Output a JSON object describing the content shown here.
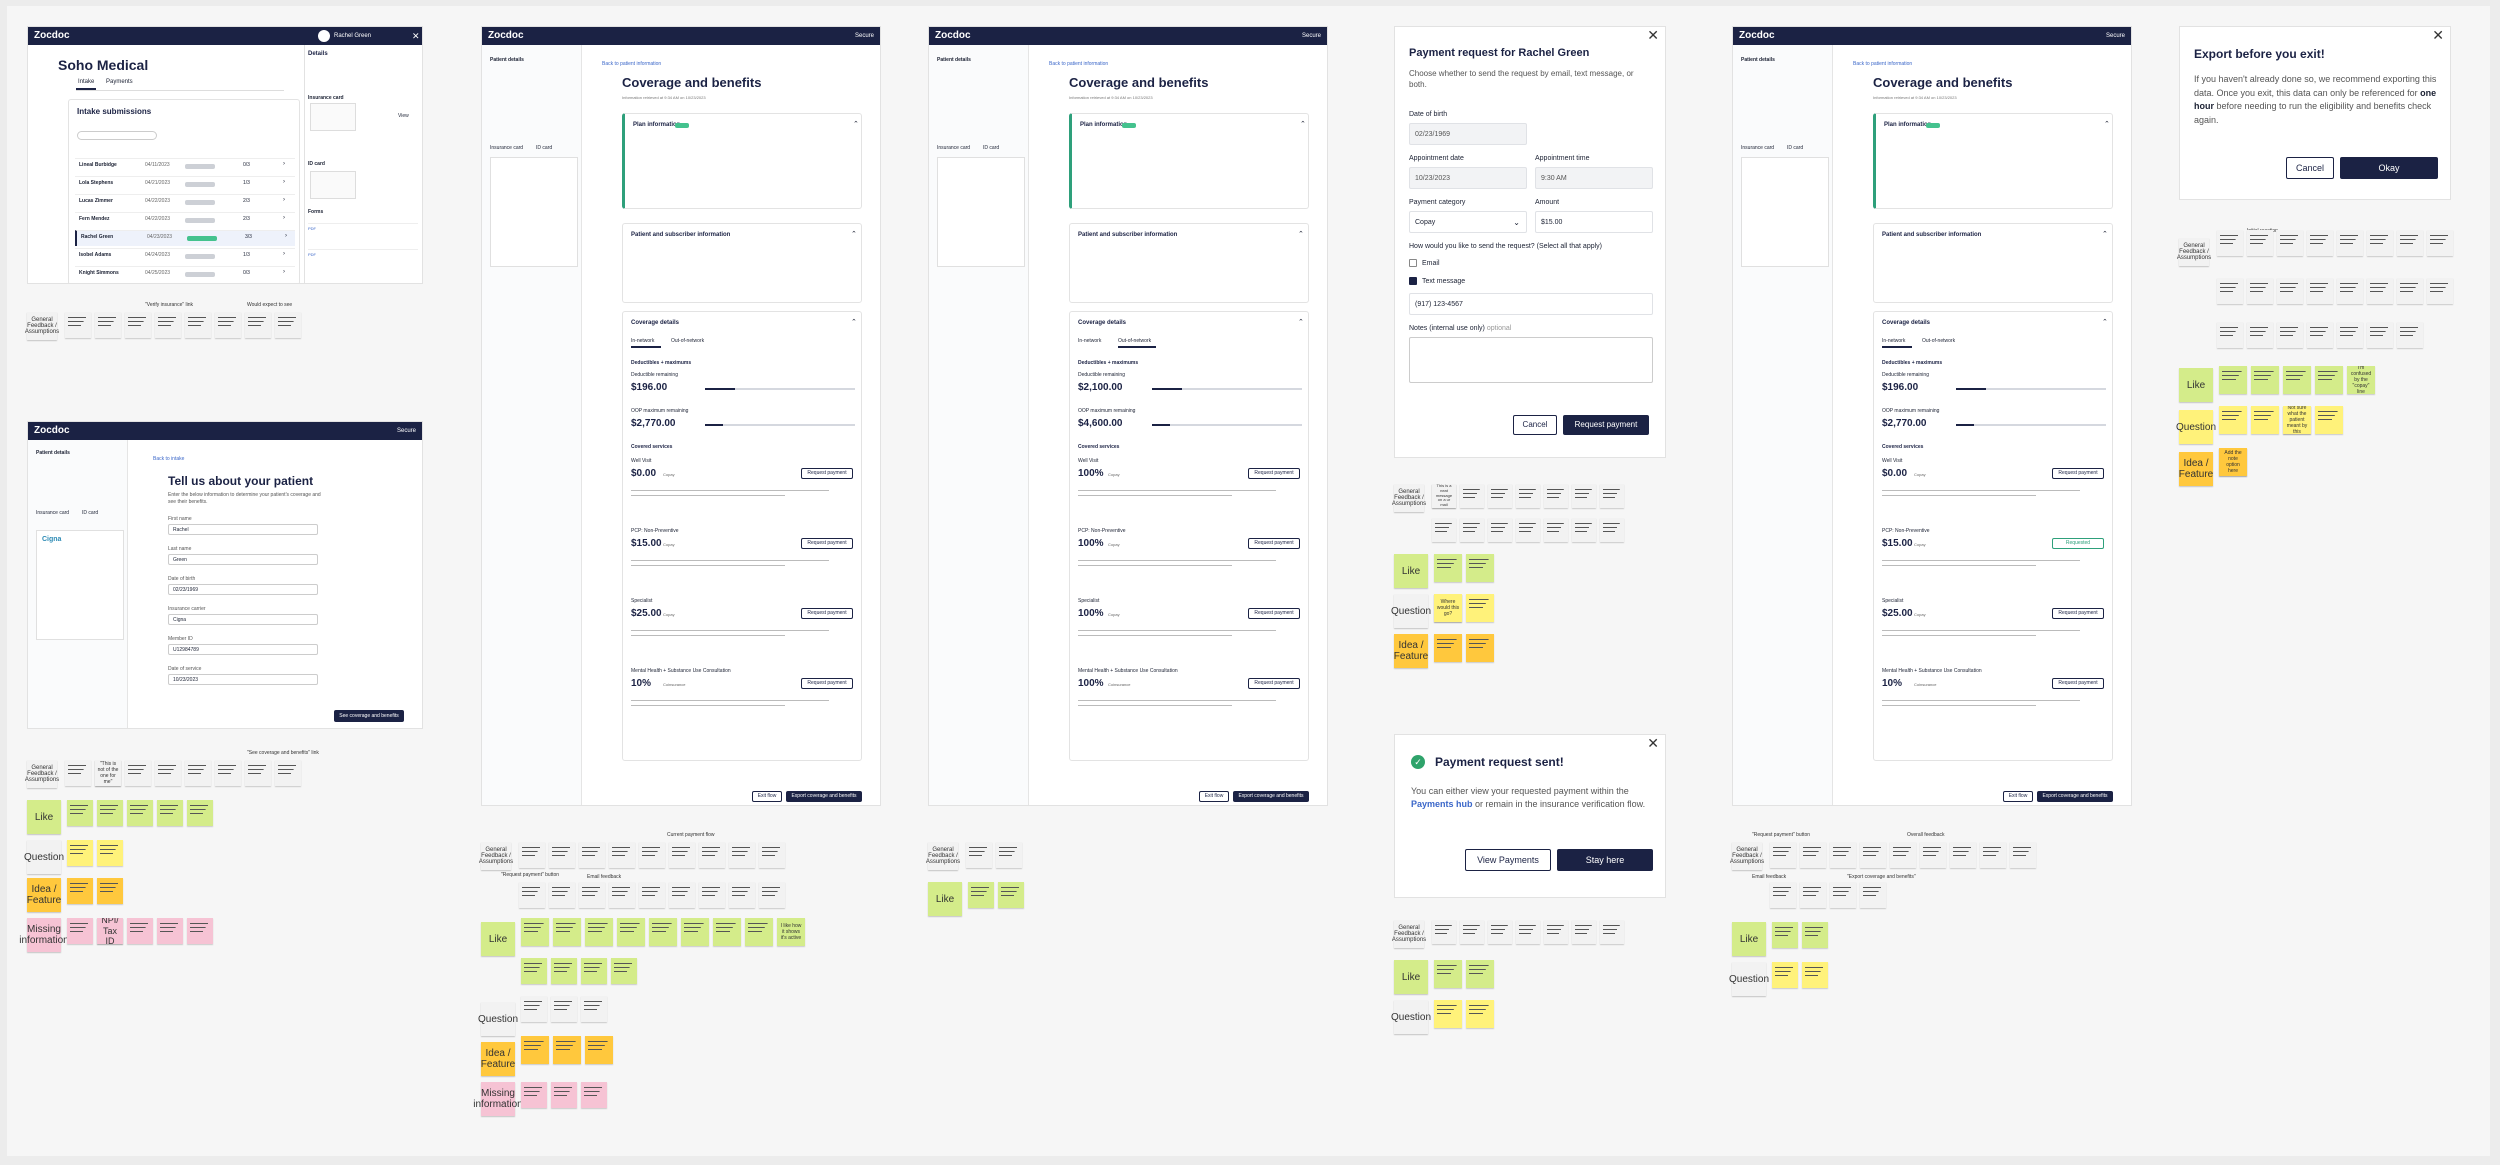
{
  "brand": "Zocdoc",
  "secure": "Secure",
  "frame_intake": {
    "user_name": "Rachel Green",
    "practice": "Soho Medical",
    "tabs": [
      "Intake",
      "Payments"
    ],
    "section_title": "Intake submissions",
    "details_title": "Details",
    "insurance_card": "Insurance card",
    "id_card": "ID card",
    "forms": "Forms",
    "view": "View",
    "patients": [
      "Lineal Burbidge",
      "Lola Stephens",
      "Lucas Zimmer",
      "Fern Mendez",
      "Rachel Green",
      "Isobel Adams",
      "Knight Simmons"
    ],
    "patient_dates": [
      "04/11/2023",
      "04/21/2023",
      "04/22/2023",
      "04/22/2023",
      "04/23/2023",
      "04/24/2023",
      "04/25/2023"
    ],
    "completion": [
      "0/3",
      "1/3",
      "2/3",
      "2/3",
      "3/3",
      "1/3",
      "0/3"
    ]
  },
  "frame_tell": {
    "back": "Back to intake",
    "title": "Tell us about your patient",
    "desc": "Enter the below information to determine your patient's coverage and see their benefits.",
    "fields": [
      {
        "label": "First name",
        "value": "Rachel"
      },
      {
        "label": "Last name",
        "value": "Green"
      },
      {
        "label": "Date of birth",
        "value": "02/23/1969"
      },
      {
        "label": "Insurance carrier",
        "value": "Cigna"
      },
      {
        "label": "Member ID",
        "value": "U12984789"
      },
      {
        "label": "Date of service",
        "value": "10/23/2023"
      }
    ],
    "cta": "See coverage and benefits",
    "patient_details": "Patient details",
    "insurance_card": "Insurance card",
    "id_card": "ID card"
  },
  "coverage": {
    "back": "Back to patient information",
    "title": "Coverage and benefits",
    "subtitle": "Information retrieved at 9:34 AM on 10/23/2023",
    "plan_info": "Plan information",
    "patient_subscriber": "Patient and subscriber information",
    "coverage_details": "Coverage details",
    "in_network": "In-network",
    "out_network": "Out-of-network",
    "deductibles": "Deductibles + maximums",
    "ded_remaining": "Deductible remaining",
    "oop_remaining": "OOP maximum remaining",
    "covered_services": "Covered services",
    "services": [
      "Well Visit",
      "PCP: Non-Preventive",
      "Specialist",
      "Mental Health + Substance Use Consultation"
    ],
    "request_payment": "Request payment",
    "exit_flow": "Exit flow",
    "export": "Export coverage and benefits",
    "requested": "Requested",
    "a": {
      "ded": "$196.00",
      "oop": "$2,770.00",
      "values": [
        "$0.00",
        "$15.00",
        "$25.00",
        "10%"
      ]
    },
    "b": {
      "ded": "$2,100.00",
      "oop": "$4,600.00",
      "values": [
        "100%",
        "100%",
        "100%",
        "100%"
      ]
    },
    "units": [
      "Copay",
      "Copay",
      "Copay",
      "Coinsurance"
    ]
  },
  "payment_modal": {
    "title": "Payment request for Rachel Green",
    "desc": "Choose whether to send the request by email, text message, or both.",
    "dob_label": "Date of birth",
    "dob": "02/23/1969",
    "appt_date_label": "Appointment date",
    "appt_date": "10/23/2023",
    "appt_time_label": "Appointment time",
    "appt_time": "9:30 AM",
    "category_label": "Payment category",
    "category": "Copay",
    "amount_label": "Amount",
    "amount": "$15.00",
    "send_q": "How would you like to send the request? (Select all that apply)",
    "email": "Email",
    "text_message": "Text message",
    "phone": "(917) 123-4567",
    "notes_label": "Notes (internal use only)",
    "optional": "optional",
    "cancel": "Cancel",
    "submit": "Request payment"
  },
  "sent_modal": {
    "title": "Payment request sent!",
    "body1": "You can either view your requested payment within the ",
    "link": "Payments hub",
    "body2": " or remain in the insurance verification flow.",
    "view": "View Payments",
    "stay": "Stay here"
  },
  "export_modal": {
    "title": "Export before you exit!",
    "body1": "If you haven't already done so, we recommend exporting this data. Once you exit, this data can only be referenced for ",
    "bold": "one hour",
    "body2": " before needing to run the eligibility and benefits check again.",
    "cancel": "Cancel",
    "ok": "Okay"
  },
  "feedback": {
    "general": "General Feedback / Assumptions",
    "like": "Like",
    "question": "Question",
    "idea": "Idea / Feature",
    "missing": "Missing information",
    "stickies": {
      "s1": "This is a neat message on a ur mail",
      "s2": "\"This is not of the one for me\"",
      "s3": "Where would this go?",
      "s4": "NPI/ Tax ID",
      "s5": "I like how it shows it's active",
      "s6": "I'm confused by the \"copay\" line",
      "s7": "Not sure what the patient meant by this",
      "s8": "Add the note option here"
    },
    "headers": [
      "\"Verify insurance\" link",
      "Would expect to see",
      "\"See coverage and benefits\" link",
      "Current payment flow",
      "\"Request payment\" button",
      "Email feedback",
      "\"Export coverage and benefits\"",
      "Overall feedback",
      "Initial reaction"
    ]
  }
}
